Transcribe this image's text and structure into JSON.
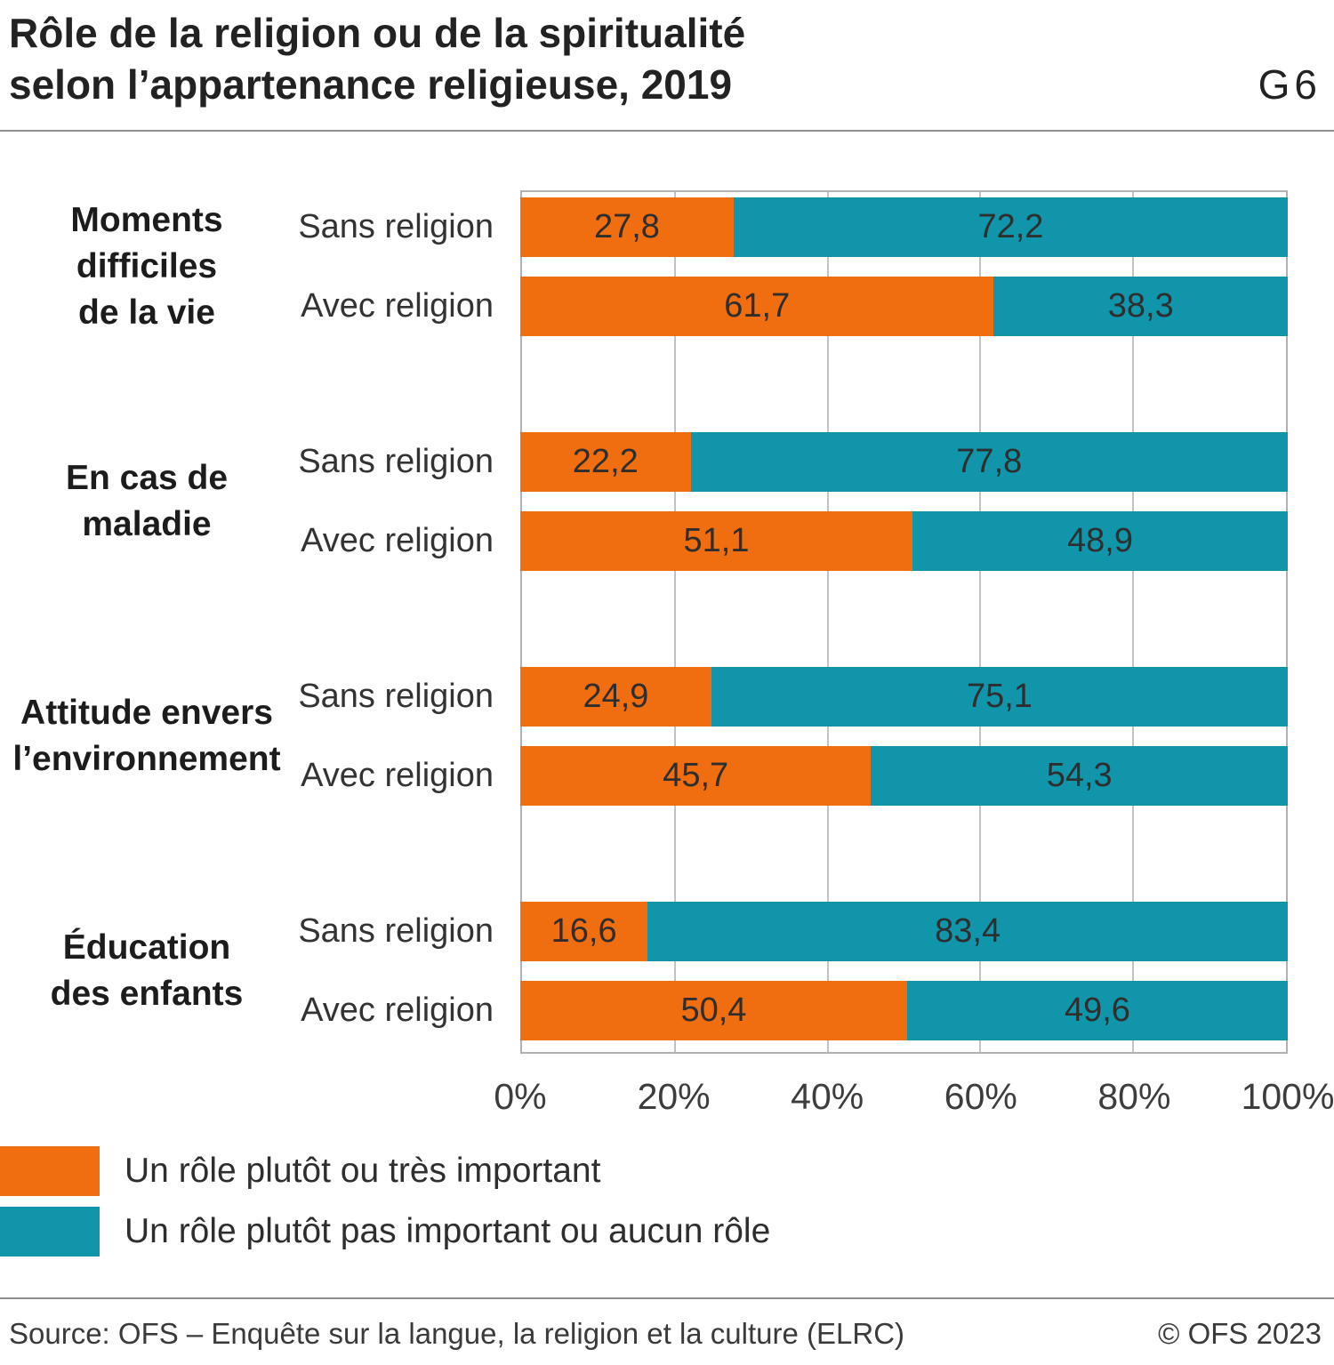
{
  "header": {
    "title_line1": "Rôle de la religion ou de la spiritualité",
    "title_line2": "selon l’appartenance religieuse, 2019",
    "figure_id": "G6"
  },
  "chart_data": {
    "type": "bar",
    "stacked": true,
    "orientation": "horizontal",
    "title": "Rôle de la religion ou de la spiritualité selon l’appartenance religieuse, 2019",
    "xlim": [
      0,
      100
    ],
    "xtick_labels": [
      "0%",
      "20%",
      "40%",
      "60%",
      "80%",
      "100%"
    ],
    "grid": "vertical",
    "series": [
      {
        "name": "Un rôle plutôt ou très important",
        "color": "#F06E0F"
      },
      {
        "name": "Un rôle plutôt pas important ou aucun rôle",
        "color": "#1095AB"
      }
    ],
    "groups": [
      {
        "label": "Moments difficiles de la vie",
        "label_lines": [
          "Moments",
          "difficiles",
          "de la vie"
        ],
        "rows": [
          {
            "label": "Sans religion",
            "values": [
              27.8,
              72.2
            ],
            "labels": [
              "27,8",
              "72,2"
            ]
          },
          {
            "label": "Avec religion",
            "values": [
              61.7,
              38.3
            ],
            "labels": [
              "61,7",
              "38,3"
            ]
          }
        ]
      },
      {
        "label": "En cas de maladie",
        "label_lines": [
          "En cas de",
          "maladie"
        ],
        "rows": [
          {
            "label": "Sans religion",
            "values": [
              22.2,
              77.8
            ],
            "labels": [
              "22,2",
              "77,8"
            ]
          },
          {
            "label": "Avec religion",
            "values": [
              51.1,
              48.9
            ],
            "labels": [
              "51,1",
              "48,9"
            ]
          }
        ]
      },
      {
        "label": "Attitude envers l’environnement",
        "label_lines": [
          "Attitude envers",
          "l’environnement"
        ],
        "rows": [
          {
            "label": "Sans religion",
            "values": [
              24.9,
              75.1
            ],
            "labels": [
              "24,9",
              "75,1"
            ]
          },
          {
            "label": "Avec religion",
            "values": [
              45.7,
              54.3
            ],
            "labels": [
              "45,7",
              "54,3"
            ]
          }
        ]
      },
      {
        "label": "Éducation des enfants",
        "label_lines": [
          "Éducation",
          "des enfants"
        ],
        "rows": [
          {
            "label": "Sans religion",
            "values": [
              16.6,
              83.4
            ],
            "labels": [
              "16,6",
              "83,4"
            ]
          },
          {
            "label": "Avec religion",
            "values": [
              50.4,
              49.6
            ],
            "labels": [
              "50,4",
              "49,6"
            ]
          }
        ]
      }
    ]
  },
  "legend": {
    "items": [
      {
        "label": "Un rôle plutôt ou très important",
        "color": "#F06E0F"
      },
      {
        "label": "Un rôle plutôt pas important ou aucun rôle",
        "color": "#1095AB"
      }
    ]
  },
  "footer": {
    "source": "Source: OFS – Enquête sur la langue, la religion et la culture (ELRC)",
    "copyright": "© OFS 2023"
  }
}
